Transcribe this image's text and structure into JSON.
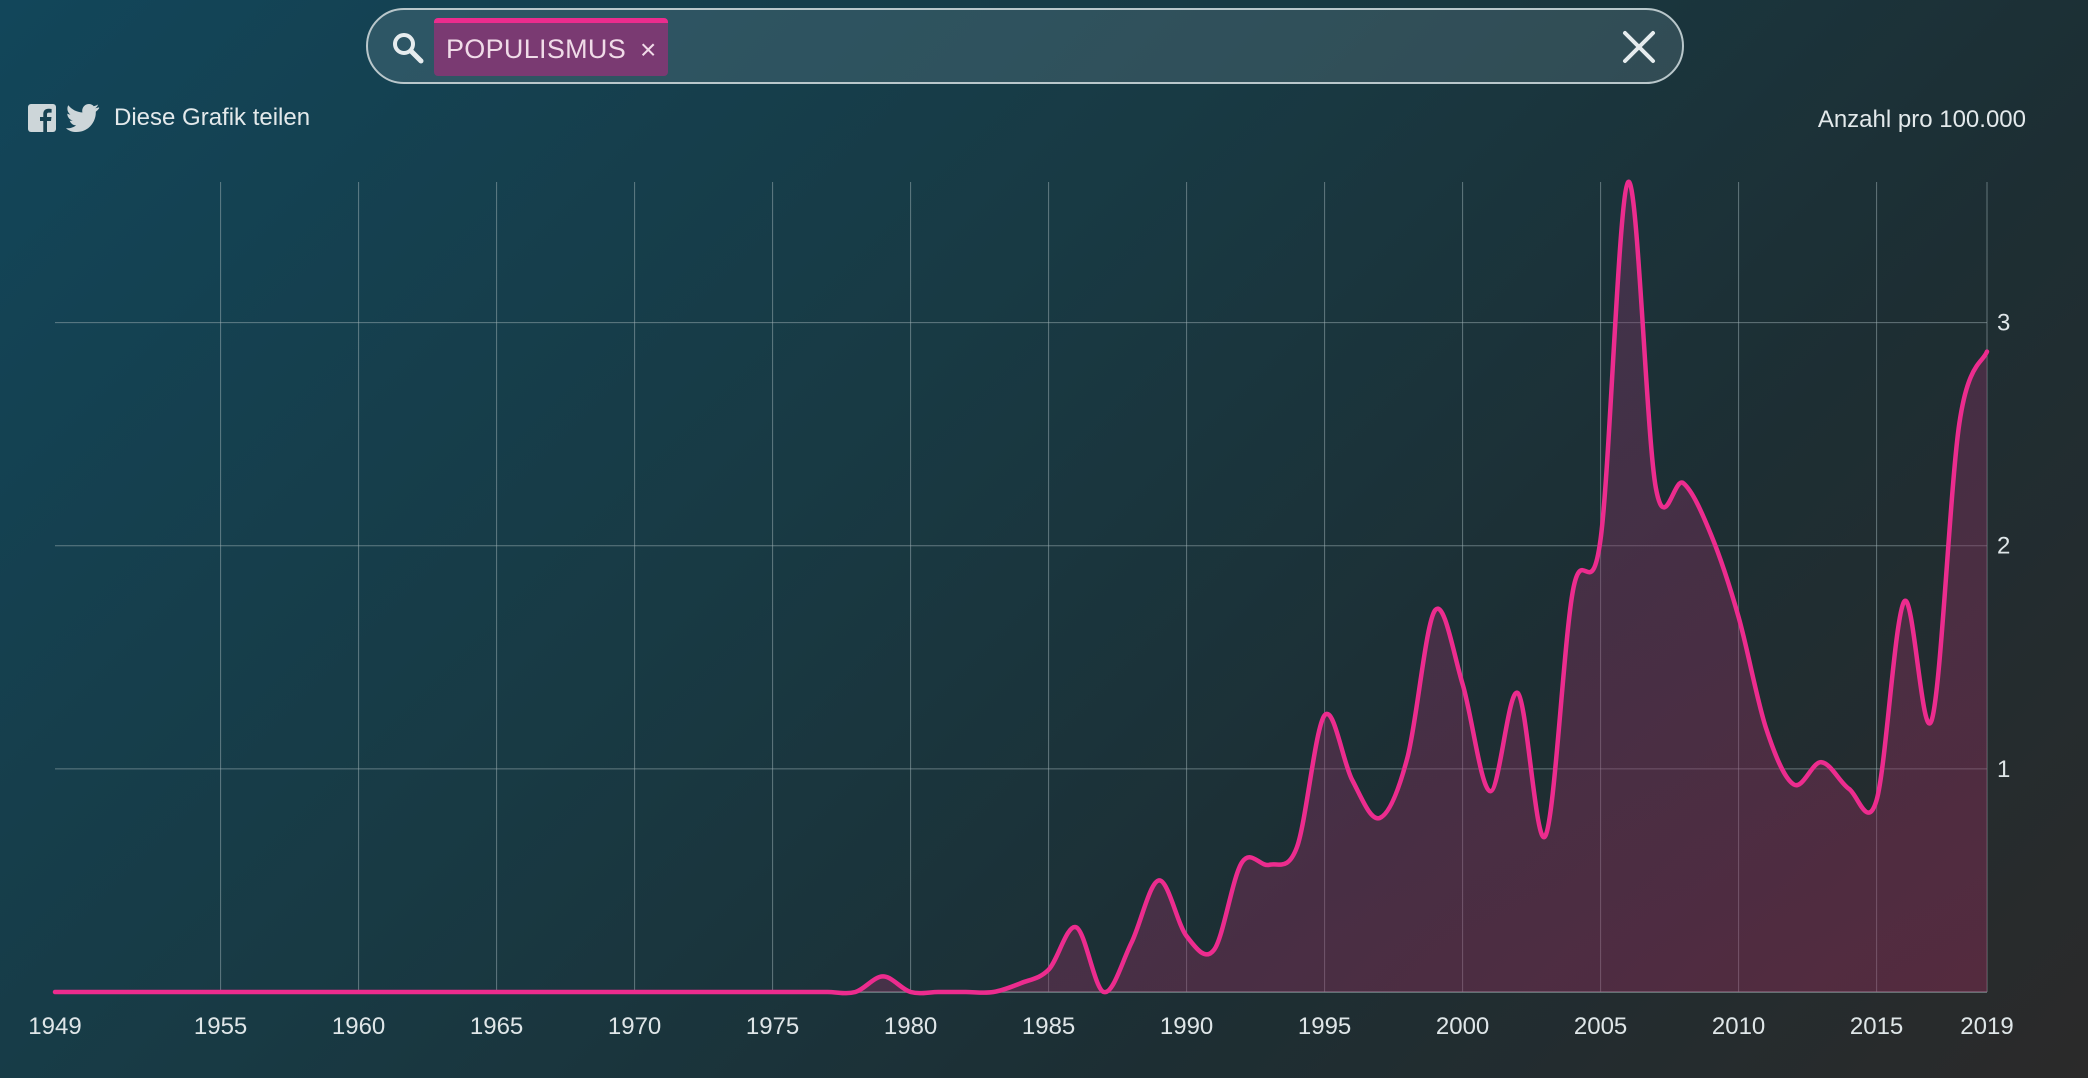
{
  "search": {
    "tag_label": "POPULISMUS",
    "tag_remove": "×"
  },
  "share": {
    "label": "Diese Grafik teilen"
  },
  "unit_label": "Anzahl pro 100.000",
  "colors": {
    "accent": "#ec2c8e",
    "tag_bg": "#7a3a72",
    "grid": "#9fb0b4"
  },
  "chart_data": {
    "type": "line",
    "series": [
      {
        "name": "POPULISMUS",
        "x": [
          1949,
          1950,
          1951,
          1952,
          1953,
          1954,
          1955,
          1956,
          1957,
          1958,
          1959,
          1960,
          1961,
          1962,
          1963,
          1964,
          1965,
          1966,
          1967,
          1968,
          1969,
          1970,
          1971,
          1972,
          1973,
          1974,
          1975,
          1976,
          1977,
          1978,
          1979,
          1980,
          1981,
          1982,
          1983,
          1984,
          1985,
          1986,
          1987,
          1988,
          1989,
          1990,
          1991,
          1992,
          1993,
          1994,
          1995,
          1996,
          1997,
          1998,
          1999,
          2000,
          2001,
          2002,
          2003,
          2004,
          2005,
          2006,
          2007,
          2008,
          2009,
          2010,
          2011,
          2012,
          2013,
          2014,
          2015,
          2016,
          2017,
          2018,
          2019
        ],
        "y": [
          0,
          0,
          0,
          0,
          0,
          0,
          0,
          0,
          0,
          0,
          0,
          0,
          0,
          0,
          0,
          0,
          0,
          0,
          0,
          0,
          0,
          0,
          0,
          0,
          0,
          0,
          0,
          0,
          0,
          0,
          0.07,
          0,
          0,
          0,
          0,
          0.04,
          0.1,
          0.29,
          0,
          0.22,
          0.5,
          0.25,
          0.19,
          0.58,
          0.57,
          0.65,
          1.24,
          0.95,
          0.78,
          1.05,
          1.71,
          1.38,
          0.9,
          1.34,
          0.7,
          1.8,
          2.03,
          3.63,
          2.26,
          2.28,
          2.05,
          1.68,
          1.18,
          0.93,
          1.03,
          0.91,
          0.86,
          1.75,
          1.22,
          2.55,
          2.87
        ]
      }
    ],
    "xticks": [
      1949,
      1955,
      1960,
      1965,
      1970,
      1975,
      1980,
      1985,
      1990,
      1995,
      2000,
      2005,
      2010,
      2015,
      2019
    ],
    "yticks": [
      1,
      2,
      3
    ],
    "xlim": [
      1949,
      2019
    ],
    "ylim": [
      0,
      3.63
    ],
    "grid": true,
    "ylabel": "Anzahl pro 100.000"
  }
}
